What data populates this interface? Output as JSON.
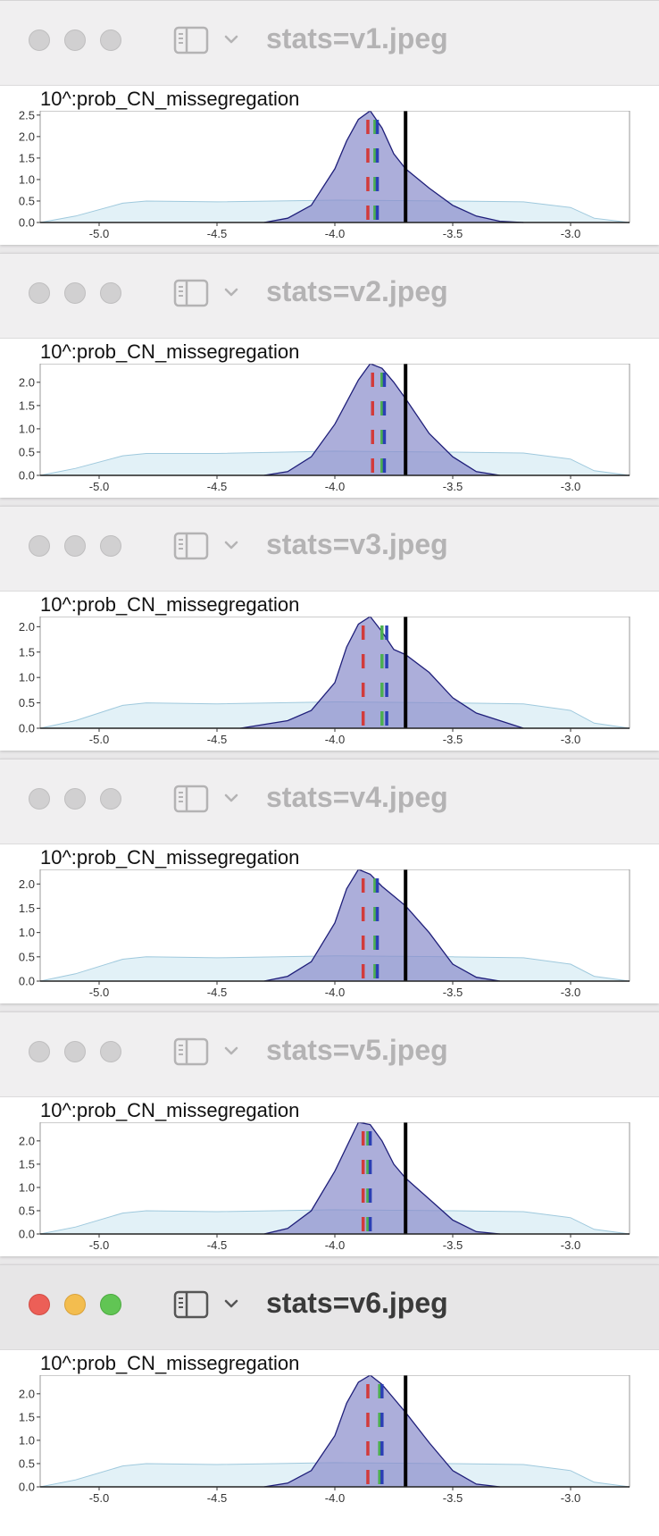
{
  "windows": [
    {
      "title": "stats=v1.jpeg",
      "active": false
    },
    {
      "title": "stats=v2.jpeg",
      "active": false
    },
    {
      "title": "stats=v3.jpeg",
      "active": false
    },
    {
      "title": "stats=v4.jpeg",
      "active": false
    },
    {
      "title": "stats=v5.jpeg",
      "active": false
    },
    {
      "title": "stats=v6.jpeg",
      "active": true
    }
  ],
  "icons": {
    "traffic_lights": [
      "close-icon",
      "minimize-icon",
      "zoom-icon"
    ],
    "sidebar_toggle": "sidebar-icon",
    "menu": "chevron-down-icon"
  },
  "colors": {
    "posterior_fill": "#8c8fcc",
    "posterior_line": "#1f1f7a",
    "prior_fill": "#d5ebf3",
    "prior_line": "#9fc9dd",
    "true_value_line": "#000000",
    "marker_colors": [
      "#d23b3b",
      "#4caf50",
      "#2b3fb5"
    ]
  },
  "chart_data": [
    {
      "type": "area",
      "title": "10^:prob_CN_missegregation",
      "xlabel": "",
      "ylabel": "",
      "xlim": [
        -5.25,
        -2.75
      ],
      "ylim": [
        0,
        2.6
      ],
      "xticks": [
        -5.0,
        -4.5,
        -4.0,
        -3.5,
        -3.0
      ],
      "yticks": [
        0.0,
        0.5,
        1.0,
        1.5,
        2.0,
        2.5
      ],
      "true_value": -3.7,
      "markers": {
        "red": -3.86,
        "green": -3.83,
        "blue": -3.82
      },
      "posterior": {
        "x": [
          -4.3,
          -4.2,
          -4.1,
          -4.0,
          -3.95,
          -3.9,
          -3.85,
          -3.8,
          -3.75,
          -3.7,
          -3.6,
          -3.5,
          -3.4,
          -3.3,
          -3.2
        ],
        "y": [
          0.0,
          0.1,
          0.4,
          1.25,
          1.9,
          2.4,
          2.6,
          2.2,
          1.6,
          1.25,
          0.8,
          0.4,
          0.15,
          0.03,
          0.0
        ]
      },
      "prior": {
        "x": [
          -5.25,
          -5.1,
          -4.9,
          -4.8,
          -4.5,
          -4.0,
          -3.5,
          -3.2,
          -3.0,
          -2.9,
          -2.75
        ],
        "y": [
          0.0,
          0.15,
          0.45,
          0.5,
          0.48,
          0.52,
          0.5,
          0.48,
          0.35,
          0.1,
          0.0
        ]
      }
    },
    {
      "type": "area",
      "title": "10^:prob_CN_missegregation",
      "xlabel": "",
      "ylabel": "",
      "xlim": [
        -5.25,
        -2.75
      ],
      "ylim": [
        0,
        2.4
      ],
      "xticks": [
        -5.0,
        -4.5,
        -4.0,
        -3.5,
        -3.0
      ],
      "yticks": [
        0.0,
        0.5,
        1.0,
        1.5,
        2.0
      ],
      "true_value": -3.7,
      "markers": {
        "red": -3.84,
        "green": -3.8,
        "blue": -3.79
      },
      "posterior": {
        "x": [
          -4.3,
          -4.2,
          -4.1,
          -4.0,
          -3.9,
          -3.85,
          -3.8,
          -3.75,
          -3.7,
          -3.6,
          -3.5,
          -3.4,
          -3.3
        ],
        "y": [
          0.0,
          0.08,
          0.4,
          1.1,
          2.05,
          2.4,
          2.3,
          2.0,
          1.65,
          0.9,
          0.4,
          0.08,
          0.0
        ]
      },
      "prior": {
        "x": [
          -5.25,
          -5.1,
          -4.9,
          -4.8,
          -4.5,
          -4.0,
          -3.5,
          -3.2,
          -3.0,
          -2.9,
          -2.75
        ],
        "y": [
          0.0,
          0.15,
          0.42,
          0.47,
          0.47,
          0.52,
          0.5,
          0.48,
          0.35,
          0.1,
          0.0
        ]
      }
    },
    {
      "type": "area",
      "title": "10^:prob_CN_missegregation",
      "xlabel": "",
      "ylabel": "",
      "xlim": [
        -5.25,
        -2.75
      ],
      "ylim": [
        0,
        2.2
      ],
      "xticks": [
        -5.0,
        -4.5,
        -4.0,
        -3.5,
        -3.0
      ],
      "yticks": [
        0.0,
        0.5,
        1.0,
        1.5,
        2.0
      ],
      "true_value": -3.7,
      "markers": {
        "red": -3.88,
        "green": -3.8,
        "blue": -3.78
      },
      "posterior": {
        "x": [
          -4.4,
          -4.2,
          -4.1,
          -4.0,
          -3.95,
          -3.9,
          -3.85,
          -3.8,
          -3.75,
          -3.7,
          -3.6,
          -3.5,
          -3.4,
          -3.3,
          -3.2
        ],
        "y": [
          0.0,
          0.15,
          0.35,
          0.9,
          1.6,
          2.05,
          2.2,
          1.9,
          1.55,
          1.45,
          1.1,
          0.6,
          0.3,
          0.15,
          0.0
        ]
      },
      "prior": {
        "x": [
          -5.25,
          -5.1,
          -4.9,
          -4.8,
          -4.5,
          -4.0,
          -3.5,
          -3.2,
          -3.0,
          -2.9,
          -2.75
        ],
        "y": [
          0.0,
          0.15,
          0.45,
          0.5,
          0.48,
          0.52,
          0.5,
          0.48,
          0.35,
          0.1,
          0.0
        ]
      }
    },
    {
      "type": "area",
      "title": "10^:prob_CN_missegregation",
      "xlabel": "",
      "ylabel": "",
      "xlim": [
        -5.25,
        -2.75
      ],
      "ylim": [
        0,
        2.3
      ],
      "xticks": [
        -5.0,
        -4.5,
        -4.0,
        -3.5,
        -3.0
      ],
      "yticks": [
        0.0,
        0.5,
        1.0,
        1.5,
        2.0
      ],
      "true_value": -3.7,
      "markers": {
        "red": -3.88,
        "green": -3.83,
        "blue": -3.82
      },
      "posterior": {
        "x": [
          -4.3,
          -4.2,
          -4.1,
          -4.0,
          -3.95,
          -3.9,
          -3.85,
          -3.8,
          -3.75,
          -3.7,
          -3.6,
          -3.5,
          -3.4,
          -3.3
        ],
        "y": [
          0.0,
          0.1,
          0.4,
          1.2,
          1.9,
          2.3,
          2.2,
          1.95,
          1.75,
          1.55,
          1.0,
          0.35,
          0.08,
          0.0
        ]
      },
      "prior": {
        "x": [
          -5.25,
          -5.1,
          -4.9,
          -4.8,
          -4.5,
          -4.0,
          -3.5,
          -3.2,
          -3.0,
          -2.9,
          -2.75
        ],
        "y": [
          0.0,
          0.15,
          0.45,
          0.5,
          0.48,
          0.52,
          0.5,
          0.48,
          0.35,
          0.1,
          0.0
        ]
      }
    },
    {
      "type": "area",
      "title": "10^:prob_CN_missegregation",
      "xlabel": "",
      "ylabel": "",
      "xlim": [
        -5.25,
        -2.75
      ],
      "ylim": [
        0,
        2.4
      ],
      "xticks": [
        -5.0,
        -4.5,
        -4.0,
        -3.5,
        -3.0
      ],
      "yticks": [
        0.0,
        0.5,
        1.0,
        1.5,
        2.0
      ],
      "true_value": -3.7,
      "markers": {
        "red": -3.88,
        "green": -3.86,
        "blue": -3.85
      },
      "posterior": {
        "x": [
          -4.3,
          -4.2,
          -4.1,
          -4.0,
          -3.9,
          -3.85,
          -3.8,
          -3.75,
          -3.7,
          -3.6,
          -3.5,
          -3.4,
          -3.3
        ],
        "y": [
          0.0,
          0.12,
          0.5,
          1.35,
          2.4,
          2.35,
          2.0,
          1.5,
          1.2,
          0.75,
          0.3,
          0.05,
          0.0
        ]
      },
      "prior": {
        "x": [
          -5.25,
          -5.1,
          -4.9,
          -4.8,
          -4.5,
          -4.0,
          -3.5,
          -3.2,
          -3.0,
          -2.9,
          -2.75
        ],
        "y": [
          0.0,
          0.15,
          0.45,
          0.5,
          0.48,
          0.52,
          0.5,
          0.48,
          0.35,
          0.1,
          0.0
        ]
      }
    },
    {
      "type": "area",
      "title": "10^:prob_CN_missegregation",
      "xlabel": "",
      "ylabel": "",
      "xlim": [
        -5.25,
        -2.75
      ],
      "ylim": [
        0,
        2.4
      ],
      "xticks": [
        -5.0,
        -4.5,
        -4.0,
        -3.5,
        -3.0
      ],
      "yticks": [
        0.0,
        0.5,
        1.0,
        1.5,
        2.0
      ],
      "true_value": -3.7,
      "markers": {
        "red": -3.86,
        "green": -3.81,
        "blue": -3.8
      },
      "posterior": {
        "x": [
          -4.3,
          -4.2,
          -4.1,
          -4.0,
          -3.95,
          -3.9,
          -3.85,
          -3.8,
          -3.75,
          -3.7,
          -3.6,
          -3.5,
          -3.4,
          -3.3
        ],
        "y": [
          0.0,
          0.08,
          0.35,
          1.1,
          1.8,
          2.25,
          2.4,
          2.2,
          1.9,
          1.6,
          0.95,
          0.35,
          0.06,
          0.0
        ]
      },
      "prior": {
        "x": [
          -5.25,
          -5.1,
          -4.9,
          -4.8,
          -4.5,
          -4.0,
          -3.5,
          -3.2,
          -3.0,
          -2.9,
          -2.75
        ],
        "y": [
          0.0,
          0.15,
          0.45,
          0.5,
          0.48,
          0.52,
          0.5,
          0.48,
          0.35,
          0.1,
          0.0
        ]
      }
    }
  ]
}
